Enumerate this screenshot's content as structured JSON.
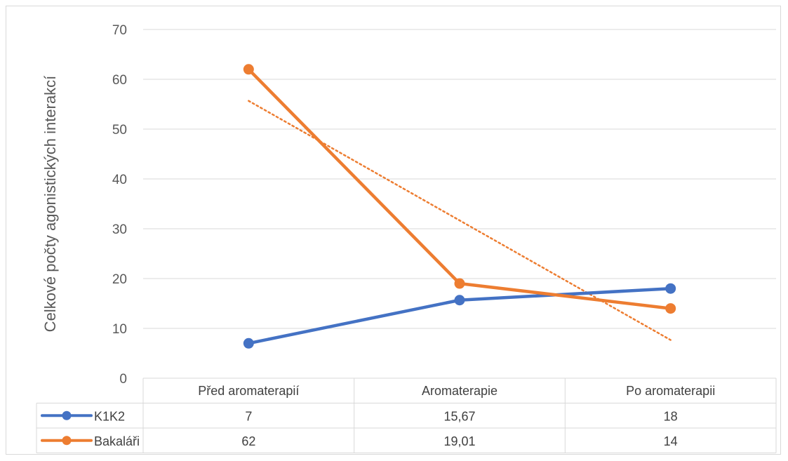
{
  "chart_data": {
    "type": "line",
    "title": "",
    "xlabel": "",
    "ylabel": "Celkové počty agonistických interakcí",
    "ylim": [
      0,
      70
    ],
    "yticks": [
      0,
      10,
      20,
      30,
      40,
      50,
      60,
      70
    ],
    "grid": true,
    "legend": "data-table-left",
    "categories": [
      "Před aromaterapií",
      "Aromaterapie",
      "Po aromaterapii"
    ],
    "series": [
      {
        "name": "K1K2",
        "values": [
          7,
          15.67,
          18
        ],
        "labels": [
          "7",
          "15,67",
          "18"
        ],
        "color": "#4472C4"
      },
      {
        "name": "Bakaláři",
        "values": [
          62,
          19.01,
          14
        ],
        "labels": [
          "62",
          "19,01",
          "14"
        ],
        "color": "#ED7D31"
      }
    ],
    "trendline": {
      "series": "Bakaláři",
      "type": "linear",
      "style": "dotted",
      "color": "#ED7D31"
    }
  }
}
